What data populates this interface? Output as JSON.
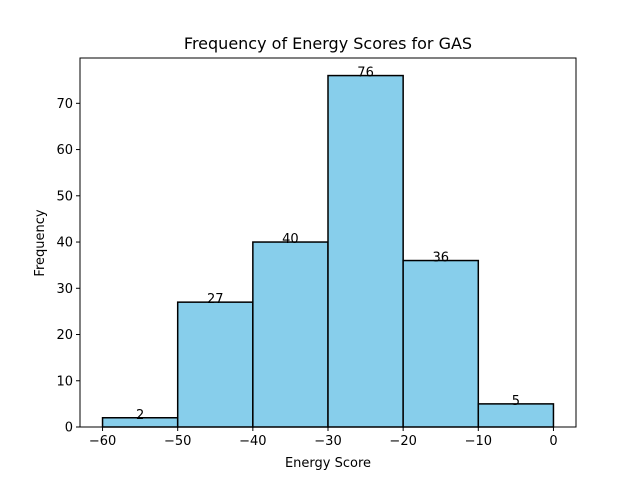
{
  "chart_data": {
    "type": "bar",
    "title": "Frequency of Energy Scores for GAS",
    "xlabel": "Energy Score",
    "ylabel": "Frequency",
    "bins": [
      {
        "start": -60,
        "end": -50,
        "value": 2,
        "label": "2"
      },
      {
        "start": -50,
        "end": -40,
        "value": 27,
        "label": "27"
      },
      {
        "start": -40,
        "end": -30,
        "value": 40,
        "label": "40"
      },
      {
        "start": -30,
        "end": -20,
        "value": 76,
        "label": "76"
      },
      {
        "start": -20,
        "end": -10,
        "value": 36,
        "label": "36"
      },
      {
        "start": -10,
        "end": 0,
        "value": 5,
        "label": "5"
      }
    ],
    "xlim": [
      -63,
      3
    ],
    "ylim": [
      0,
      79.8
    ],
    "xticks": [
      -60,
      -50,
      -40,
      -30,
      -20,
      -10,
      0
    ],
    "xtick_labels": [
      "−60",
      "−50",
      "−40",
      "−30",
      "−20",
      "−10",
      "0"
    ],
    "yticks": [
      0,
      10,
      20,
      30,
      40,
      50,
      60,
      70
    ],
    "ytick_labels": [
      "0",
      "10",
      "20",
      "30",
      "40",
      "50",
      "60",
      "70"
    ],
    "bar_color": "#87CEEB",
    "edge_color": "#000000",
    "grid": false,
    "legend": false
  }
}
